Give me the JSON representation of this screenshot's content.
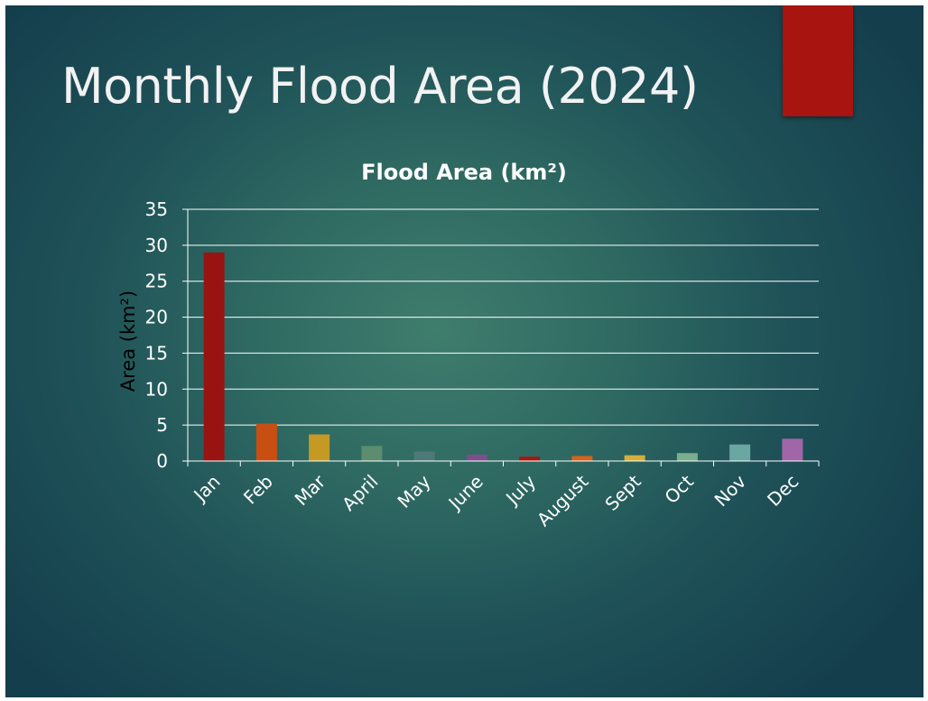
{
  "slide": {
    "title": "Monthly Flood Area (2024)",
    "accent_color": "#a8140f"
  },
  "chart_data": {
    "type": "bar",
    "title": "Flood Area (km²)",
    "xlabel": "",
    "ylabel": "Area (km²)",
    "ylim": [
      0,
      35
    ],
    "yticks": [
      0,
      5,
      10,
      15,
      20,
      25,
      30,
      35
    ],
    "grid": true,
    "legend": "none",
    "categories": [
      "Jan",
      "Feb",
      "Mar",
      "April",
      "May",
      "June",
      "July",
      "August",
      "Sept",
      "Oct",
      "Nov",
      "Dec"
    ],
    "values": [
      29,
      5.2,
      3.7,
      2.1,
      1.3,
      0.9,
      0.6,
      0.7,
      0.8,
      1.1,
      2.3,
      3.1
    ],
    "colors": [
      "#9a1313",
      "#c94e12",
      "#c59a24",
      "#5b8d6e",
      "#4c7a78",
      "#7b4e8c",
      "#a8150f",
      "#d5631c",
      "#d4b03a",
      "#7aae8e",
      "#6aa6a2",
      "#a066a8"
    ]
  }
}
